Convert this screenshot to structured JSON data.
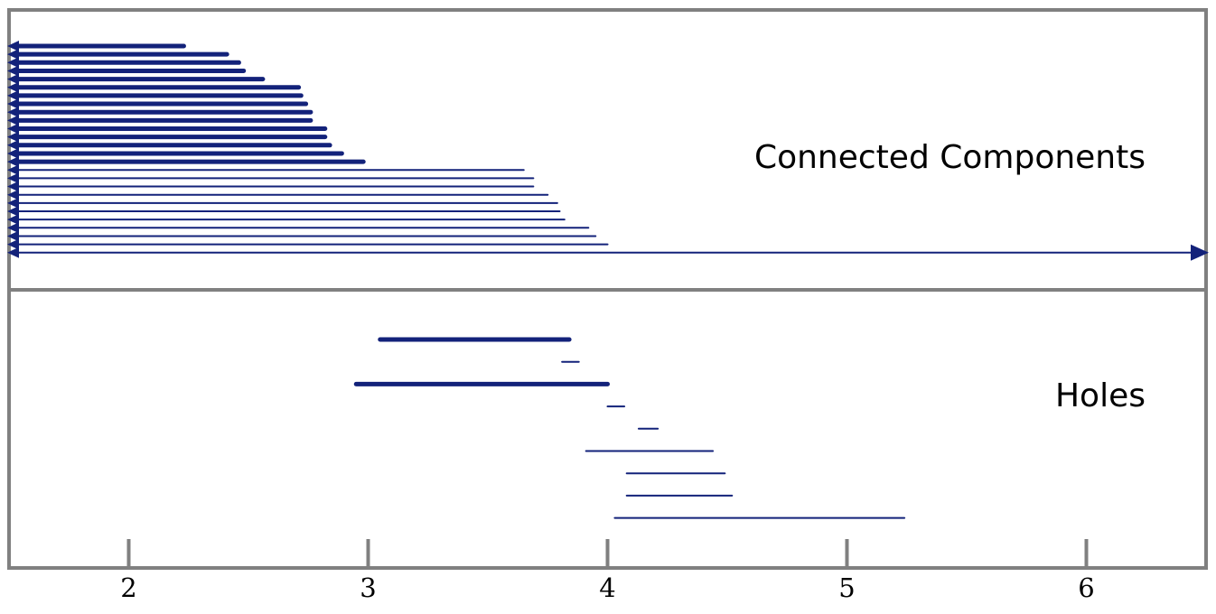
{
  "chart_data": [
    {
      "type": "barcode",
      "panel": "Connected Components",
      "title": "Connected Components",
      "colors": {
        "bar": "#13227a",
        "frame": "#808080"
      },
      "xlim": [
        1.5,
        6.5
      ],
      "intervals": [
        {
          "birth": 1.5,
          "death": 2.23,
          "persistence": "high"
        },
        {
          "birth": 1.5,
          "death": 2.41,
          "persistence": "high"
        },
        {
          "birth": 1.5,
          "death": 2.46,
          "persistence": "high"
        },
        {
          "birth": 1.5,
          "death": 2.48,
          "persistence": "high"
        },
        {
          "birth": 1.5,
          "death": 2.56,
          "persistence": "high"
        },
        {
          "birth": 1.5,
          "death": 2.71,
          "persistence": "high"
        },
        {
          "birth": 1.5,
          "death": 2.72,
          "persistence": "high"
        },
        {
          "birth": 1.5,
          "death": 2.74,
          "persistence": "high"
        },
        {
          "birth": 1.5,
          "death": 2.76,
          "persistence": "high"
        },
        {
          "birth": 1.5,
          "death": 2.76,
          "persistence": "high"
        },
        {
          "birth": 1.5,
          "death": 2.82,
          "persistence": "high"
        },
        {
          "birth": 1.5,
          "death": 2.82,
          "persistence": "high"
        },
        {
          "birth": 1.5,
          "death": 2.84,
          "persistence": "high"
        },
        {
          "birth": 1.5,
          "death": 2.89,
          "persistence": "high"
        },
        {
          "birth": 1.5,
          "death": 2.98,
          "persistence": "high"
        },
        {
          "birth": 1.5,
          "death": 3.65,
          "persistence": "low"
        },
        {
          "birth": 1.5,
          "death": 3.69,
          "persistence": "low"
        },
        {
          "birth": 1.5,
          "death": 3.69,
          "persistence": "low"
        },
        {
          "birth": 1.5,
          "death": 3.75,
          "persistence": "low"
        },
        {
          "birth": 1.5,
          "death": 3.79,
          "persistence": "low"
        },
        {
          "birth": 1.5,
          "death": 3.8,
          "persistence": "low"
        },
        {
          "birth": 1.5,
          "death": 3.82,
          "persistence": "low"
        },
        {
          "birth": 1.5,
          "death": 3.92,
          "persistence": "low"
        },
        {
          "birth": 1.5,
          "death": 3.95,
          "persistence": "low"
        },
        {
          "birth": 1.5,
          "death": 4.0,
          "persistence": "low"
        },
        {
          "birth": 1.5,
          "death": "infinity",
          "persistence": "low"
        }
      ]
    },
    {
      "type": "barcode",
      "panel": "Holes",
      "title": "Holes",
      "colors": {
        "bar": "#13227a",
        "frame": "#808080"
      },
      "xlim": [
        1.5,
        6.5
      ],
      "xticks": [
        2,
        3,
        4,
        5,
        6
      ],
      "intervals": [
        {
          "birth": 3.05,
          "death": 3.84,
          "persistence": "high"
        },
        {
          "birth": 3.81,
          "death": 3.88,
          "persistence": "low"
        },
        {
          "birth": 2.95,
          "death": 4.0,
          "persistence": "high"
        },
        {
          "birth": 4.0,
          "death": 4.07,
          "persistence": "low"
        },
        {
          "birth": 4.13,
          "death": 4.21,
          "persistence": "low"
        },
        {
          "birth": 3.91,
          "death": 4.44,
          "persistence": "low"
        },
        {
          "birth": 4.08,
          "death": 4.49,
          "persistence": "low"
        },
        {
          "birth": 4.08,
          "death": 4.52,
          "persistence": "low"
        },
        {
          "birth": 4.03,
          "death": 5.24,
          "persistence": "low"
        }
      ]
    }
  ]
}
